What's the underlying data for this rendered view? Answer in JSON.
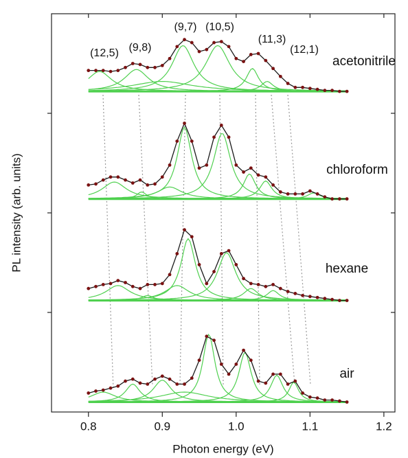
{
  "chart_data": {
    "type": "line",
    "xlabel": "Photon energy (eV)",
    "ylabel": "PL intensity (arb. units)",
    "xlim": [
      0.75,
      1.215
    ],
    "xticks": [
      0.8,
      0.9,
      {
        "value": 1.0,
        "label": "1.0"
      },
      1.1,
      1.2
    ],
    "ylim": [
      0,
      4
    ],
    "yticks": [
      1,
      2,
      3
    ],
    "fit_color": "#1a1a1a",
    "component_color": "#4fd04f",
    "x": [
      0.8,
      0.81,
      0.82,
      0.83,
      0.84,
      0.85,
      0.86,
      0.87,
      0.88,
      0.89,
      0.9,
      0.91,
      0.92,
      0.93,
      0.94,
      0.95,
      0.96,
      0.97,
      0.98,
      0.99,
      1.0,
      1.01,
      1.02,
      1.03,
      1.04,
      1.05,
      1.06,
      1.07,
      1.08,
      1.09,
      1.1,
      1.11,
      1.12,
      1.13,
      1.14,
      1.15
    ],
    "annotations": [
      "(12,5)",
      "(9,8)",
      "(9,7)",
      "(10,5)",
      "(11,3)",
      "(12,1)"
    ],
    "series": [
      {
        "name": "acetonitrile",
        "color": "#7a1212",
        "baseline": 3.22,
        "values": [
          3.43,
          3.43,
          3.43,
          3.42,
          3.43,
          3.46,
          3.5,
          3.49,
          3.46,
          3.46,
          3.48,
          3.55,
          3.67,
          3.74,
          3.71,
          3.62,
          3.64,
          3.71,
          3.72,
          3.67,
          3.55,
          3.52,
          3.59,
          3.6,
          3.53,
          3.45,
          3.37,
          3.3,
          3.26,
          3.26,
          3.25,
          3.24,
          3.23,
          3.23,
          3.22,
          3.22
        ],
        "components": [
          {
            "center": 0.815,
            "height": 0.2,
            "width": 0.02
          },
          {
            "center": 0.865,
            "height": 0.22,
            "width": 0.02
          },
          {
            "center": 0.9,
            "height": 0.1,
            "width": 0.05
          },
          {
            "center": 0.928,
            "height": 0.46,
            "width": 0.018
          },
          {
            "center": 0.975,
            "height": 0.46,
            "width": 0.02
          },
          {
            "center": 1.022,
            "height": 0.23,
            "width": 0.01
          },
          {
            "center": 1.042,
            "height": 0.1,
            "width": 0.01
          }
        ]
      },
      {
        "name": "chloroform",
        "color": "#7a1212",
        "baseline": 2.14,
        "values": [
          2.28,
          2.29,
          2.33,
          2.36,
          2.36,
          2.33,
          2.3,
          2.33,
          2.28,
          2.29,
          2.36,
          2.48,
          2.72,
          2.9,
          2.72,
          2.45,
          2.48,
          2.76,
          2.88,
          2.76,
          2.48,
          2.41,
          2.45,
          2.38,
          2.36,
          2.28,
          2.21,
          2.19,
          2.19,
          2.19,
          2.22,
          2.19,
          2.16,
          2.14,
          2.14,
          2.14
        ],
        "components": [
          {
            "center": 0.835,
            "height": 0.17,
            "width": 0.02
          },
          {
            "center": 0.872,
            "height": 0.07,
            "width": 0.008
          },
          {
            "center": 0.91,
            "height": 0.12,
            "width": 0.02
          },
          {
            "center": 0.93,
            "height": 0.72,
            "width": 0.012
          },
          {
            "center": 0.981,
            "height": 0.66,
            "width": 0.014
          },
          {
            "center": 1.018,
            "height": 0.25,
            "width": 0.01
          },
          {
            "center": 1.04,
            "height": 0.18,
            "width": 0.01
          },
          {
            "center": 1.105,
            "height": 0.06,
            "width": 0.01
          }
        ]
      },
      {
        "name": "hexane",
        "color": "#7a1212",
        "baseline": 1.12,
        "values": [
          1.24,
          1.26,
          1.28,
          1.29,
          1.32,
          1.3,
          1.26,
          1.24,
          1.28,
          1.28,
          1.29,
          1.38,
          1.59,
          1.83,
          1.76,
          1.48,
          1.29,
          1.41,
          1.59,
          1.62,
          1.48,
          1.34,
          1.29,
          1.28,
          1.26,
          1.28,
          1.24,
          1.21,
          1.19,
          1.17,
          1.16,
          1.15,
          1.14,
          1.13,
          1.12,
          1.12
        ],
        "components": [
          {
            "center": 0.84,
            "height": 0.15,
            "width": 0.02
          },
          {
            "center": 0.88,
            "height": 0.05,
            "width": 0.01
          },
          {
            "center": 0.92,
            "height": 0.15,
            "width": 0.02
          },
          {
            "center": 0.935,
            "height": 0.62,
            "width": 0.012
          },
          {
            "center": 0.987,
            "height": 0.48,
            "width": 0.015
          },
          {
            "center": 1.02,
            "height": 0.12,
            "width": 0.012
          },
          {
            "center": 1.05,
            "height": 0.1,
            "width": 0.01
          }
        ]
      },
      {
        "name": "air",
        "color": "#7a1212",
        "baseline": 0.1,
        "values": [
          0.19,
          0.21,
          0.22,
          0.24,
          0.26,
          0.31,
          0.33,
          0.29,
          0.28,
          0.33,
          0.36,
          0.33,
          0.28,
          0.28,
          0.34,
          0.52,
          0.76,
          0.72,
          0.48,
          0.38,
          0.48,
          0.62,
          0.52,
          0.31,
          0.29,
          0.38,
          0.38,
          0.28,
          0.31,
          0.19,
          0.15,
          0.14,
          0.12,
          0.12,
          0.11,
          0.1
        ],
        "components": [
          {
            "center": 0.82,
            "height": 0.1,
            "width": 0.02
          },
          {
            "center": 0.86,
            "height": 0.18,
            "width": 0.012
          },
          {
            "center": 0.9,
            "height": 0.22,
            "width": 0.015
          },
          {
            "center": 0.93,
            "height": 0.1,
            "width": 0.04
          },
          {
            "center": 0.963,
            "height": 0.68,
            "width": 0.01
          },
          {
            "center": 1.012,
            "height": 0.5,
            "width": 0.01
          },
          {
            "center": 1.055,
            "height": 0.27,
            "width": 0.01
          },
          {
            "center": 1.078,
            "height": 0.2,
            "width": 0.008
          }
        ]
      }
    ]
  }
}
